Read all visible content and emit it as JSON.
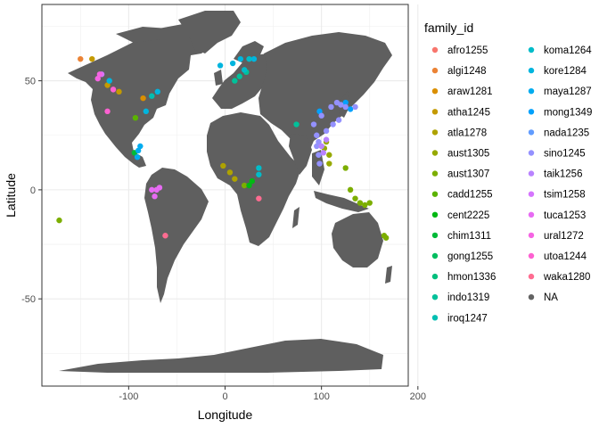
{
  "chart_data": {
    "type": "scatter",
    "map_background": "world",
    "xlabel": "Longitude",
    "ylabel": "Latitude",
    "xlim": [
      -190,
      190
    ],
    "ylim": [
      -90,
      85
    ],
    "x_ticks": [
      -100,
      0,
      100,
      200
    ],
    "x_tick_labels": [
      "-100",
      "0",
      "100",
      "200"
    ],
    "y_ticks": [
      -50,
      0,
      50
    ],
    "y_tick_labels": [
      "-50",
      "0",
      "50"
    ],
    "grid": true,
    "legend_title": "family_id",
    "legend_position": "right",
    "land_color": "#5f5f5f",
    "series": [
      {
        "name": "afro1255",
        "color": "#F8766D",
        "points": []
      },
      {
        "name": "algi1248",
        "color": "#EB8335",
        "points": [
          [
            -150,
            60
          ]
        ]
      },
      {
        "name": "araw1281",
        "color": "#DA8F00",
        "points": [
          [
            -85,
            42
          ]
        ]
      },
      {
        "name": "atha1245",
        "color": "#C49A00",
        "points": [
          [
            -138,
            60
          ],
          [
            -122,
            48
          ],
          [
            -110,
            45
          ]
        ]
      },
      {
        "name": "atla1278",
        "color": "#AEA200",
        "points": [
          [
            -2,
            11
          ],
          [
            5,
            8
          ],
          [
            10,
            5
          ]
        ]
      },
      {
        "name": "aust1305",
        "color": "#96A900",
        "points": [
          [
            103,
            19
          ],
          [
            108,
            16
          ],
          [
            108,
            12
          ],
          [
            105,
            22
          ]
        ]
      },
      {
        "name": "aust1307",
        "color": "#7CAE00",
        "points": [
          [
            -172,
            -14
          ],
          [
            135,
            -4
          ],
          [
            140,
            -6
          ],
          [
            145,
            -7
          ],
          [
            150,
            -6
          ],
          [
            165,
            -21
          ],
          [
            167,
            -22
          ],
          [
            125,
            10
          ],
          [
            130,
            0
          ],
          [
            20,
            2
          ]
        ]
      },
      {
        "name": "cadd1255",
        "color": "#5BB300",
        "points": [
          [
            -93,
            33
          ]
        ]
      },
      {
        "name": "cent2225",
        "color": "#00B813",
        "points": [
          [
            25,
            2
          ],
          [
            28,
            4
          ]
        ]
      },
      {
        "name": "chim1311",
        "color": "#00BA38",
        "points": [
          [
            -94,
            17
          ]
        ]
      },
      {
        "name": "gong1255",
        "color": "#00BD5F",
        "points": []
      },
      {
        "name": "hmon1336",
        "color": "#00BF7D",
        "points": []
      },
      {
        "name": "indo1319",
        "color": "#00C19A",
        "points": [
          [
            10,
            50
          ],
          [
            15,
            52
          ],
          [
            22,
            54
          ],
          [
            74,
            30
          ]
        ]
      },
      {
        "name": "iroq1247",
        "color": "#00BFB2",
        "points": [
          [
            -76,
            43
          ]
        ]
      },
      {
        "name": "koma1264",
        "color": "#00BCC9",
        "points": [
          [
            35,
            10
          ],
          [
            35,
            7
          ],
          [
            20,
            55
          ],
          [
            25,
            60
          ]
        ]
      },
      {
        "name": "kore1284",
        "color": "#00B5DE",
        "points": [
          [
            -5,
            57
          ],
          [
            8,
            58
          ],
          [
            16,
            60
          ],
          [
            30,
            60
          ],
          [
            -70,
            45
          ],
          [
            -120,
            50
          ],
          [
            -82,
            36
          ]
        ]
      },
      {
        "name": "maya1287",
        "color": "#00ACEF",
        "points": [
          [
            -90,
            18
          ],
          [
            -91,
            15
          ],
          [
            -88,
            20
          ]
        ]
      },
      {
        "name": "mong1349",
        "color": "#00A1FC",
        "points": [
          [
            98,
            36
          ],
          [
            125,
            40
          ],
          [
            130,
            37
          ]
        ]
      },
      {
        "name": "nada1235",
        "color": "#619CFF",
        "points": []
      },
      {
        "name": "sino1245",
        "color": "#9491FF",
        "points": [
          [
            92,
            30
          ],
          [
            100,
            34
          ],
          [
            110,
            38
          ],
          [
            95,
            25
          ],
          [
            105,
            27
          ],
          [
            112,
            30
          ],
          [
            118,
            32
          ],
          [
            120,
            39
          ],
          [
            116,
            40
          ],
          [
            125,
            38
          ],
          [
            135,
            38
          ],
          [
            97,
            22
          ],
          [
            100,
            20
          ],
          [
            95,
            20
          ],
          [
            97,
            16
          ],
          [
            98,
            12
          ]
        ]
      },
      {
        "name": "taik1256",
        "color": "#B983FF",
        "points": [
          [
            105,
            23
          ],
          [
            100,
            20
          ],
          [
            102,
            17
          ]
        ]
      },
      {
        "name": "tsim1258",
        "color": "#D575FE",
        "points": [
          [
            -128,
            53
          ]
        ]
      },
      {
        "name": "tuca1253",
        "color": "#E76BF3",
        "points": [
          [
            -73,
            -3
          ],
          [
            -71,
            0
          ],
          [
            -68,
            1
          ],
          [
            -76,
            0
          ]
        ]
      },
      {
        "name": "ural1272",
        "color": "#F564E3",
        "points": [
          [
            -130,
            53
          ],
          [
            -132,
            51
          ]
        ]
      },
      {
        "name": "utoa1244",
        "color": "#FD61D1",
        "points": [
          [
            -122,
            36
          ],
          [
            -116,
            46
          ]
        ]
      },
      {
        "name": "waka1280",
        "color": "#FF6C91",
        "points": [
          [
            -62,
            -21
          ],
          [
            35,
            -4
          ]
        ]
      },
      {
        "name": "NA",
        "color": "#636363",
        "points": []
      }
    ]
  }
}
